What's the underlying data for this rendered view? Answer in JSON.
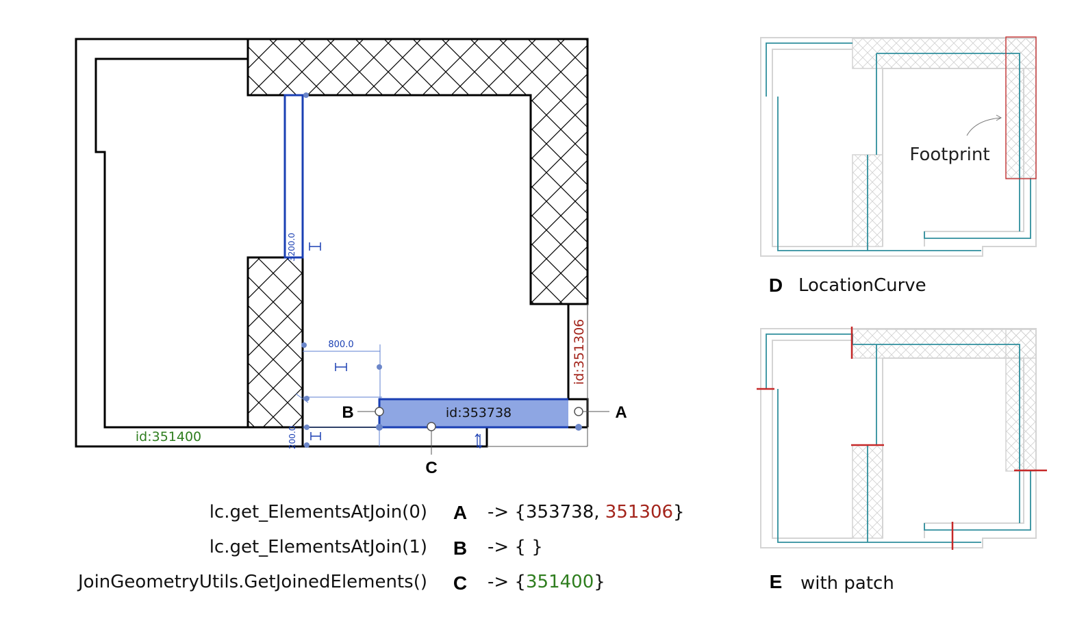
{
  "plan": {
    "selected_id": "id:353738",
    "green_id": "id:351400",
    "red_id": "id:351306",
    "dim_top": "3200.0",
    "dim_width": "800.0",
    "dim_bottom": "200.0",
    "point_a": "A",
    "point_b": "B",
    "point_c": "C"
  },
  "code": {
    "lines": [
      {
        "expr": "lc.get_ElementsAtJoin(0)",
        "letter": "A",
        "arrow": "-> {",
        "v1": "353738",
        "sep": ", ",
        "v2": "351306",
        "close": "}"
      },
      {
        "expr": "lc.get_ElementsAtJoin(1)",
        "letter": "B",
        "arrow": "-> { }"
      },
      {
        "expr": "JoinGeometryUtils.GetJoinedElements()",
        "letter": "C",
        "arrow": "-> {",
        "v1": "351400",
        "close": "}"
      }
    ]
  },
  "panel_d": {
    "letter": "D",
    "caption": "LocationCurve",
    "annotation": "Footprint"
  },
  "panel_e": {
    "letter": "E",
    "caption": "with patch"
  },
  "colors": {
    "selected_fill": "#8ea6e3",
    "selection_blue": "#1a3fb3",
    "green": "#2e7d1e",
    "red": "#a3241b",
    "teal": "#2f8f9d",
    "patch_red": "#c62828",
    "light_wall": "#d4d4d4"
  }
}
